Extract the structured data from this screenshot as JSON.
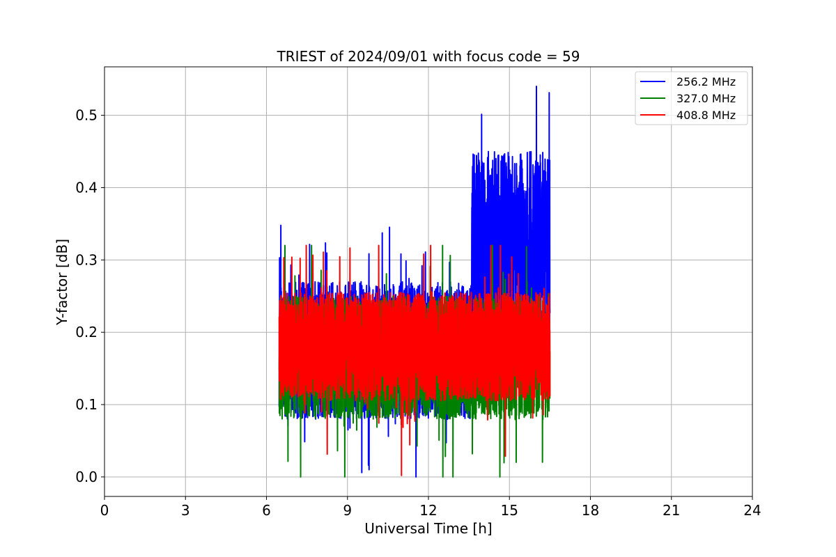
{
  "chart_data": {
    "type": "line",
    "title": "TRIEST of 2024/09/01 with focus code = 59",
    "xlabel": "Universal Time [h]",
    "ylabel": "Y-factor [dB]",
    "xlim": [
      0,
      24
    ],
    "ylim": [
      -0.027,
      0.567
    ],
    "xticks": [
      0,
      3,
      6,
      9,
      12,
      15,
      18,
      21,
      24
    ],
    "yticks": [
      0.0,
      0.1,
      0.2,
      0.3,
      0.4,
      0.5
    ],
    "xtick_labels": [
      "0",
      "3",
      "6",
      "9",
      "12",
      "15",
      "18",
      "21",
      "24"
    ],
    "ytick_labels": [
      "0.0",
      "0.1",
      "0.2",
      "0.3",
      "0.4",
      "0.5"
    ],
    "grid": true,
    "legend_position": "top-right",
    "series": [
      {
        "name": "256.2 MHz",
        "color": "#0000ff",
        "segments": [
          {
            "x_start": 6.47,
            "x_end": 13.6,
            "center": 0.175,
            "amplitude": 0.095,
            "min": 0.0,
            "max": 0.375
          },
          {
            "x_start": 13.6,
            "x_end": 16.5,
            "center": 0.31,
            "amplitude": 0.14,
            "min": 0.1,
            "max": 0.54
          }
        ]
      },
      {
        "name": "327.0 MHz",
        "color": "#008000",
        "segments": [
          {
            "x_start": 6.47,
            "x_end": 16.5,
            "center": 0.165,
            "amplitude": 0.085,
            "min": 0.0,
            "max": 0.32
          }
        ]
      },
      {
        "name": "408.8 MHz",
        "color": "#ff0000",
        "segments": [
          {
            "x_start": 6.47,
            "x_end": 16.5,
            "center": 0.18,
            "amplitude": 0.075,
            "min": 0.0,
            "max": 0.32
          }
        ]
      }
    ]
  }
}
